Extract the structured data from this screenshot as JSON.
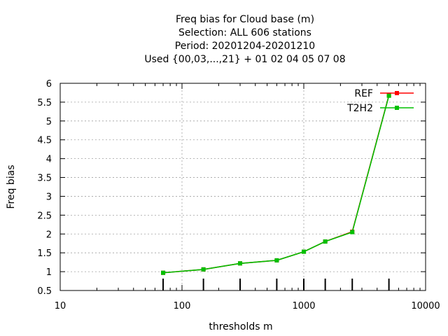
{
  "chart_data": {
    "type": "line",
    "title_lines": [
      "Freq bias  for Cloud base (m)",
      "Selection: ALL    606 stations",
      "Period: 20201204-20201210",
      "Used {00,03,...,21} + 01 02 04 05 07 08"
    ],
    "xlabel": "thresholds m",
    "ylabel": "Freq bias",
    "x_scale": "log",
    "xlim": [
      10,
      10000
    ],
    "ylim": [
      0.5,
      6
    ],
    "x_ticks": [
      10,
      100,
      1000,
      10000
    ],
    "x_tick_labels": [
      "10",
      "100",
      "1000",
      "10000"
    ],
    "y_ticks": [
      0.5,
      1,
      1.5,
      2,
      2.5,
      3,
      3.5,
      4,
      4.5,
      5,
      5.5,
      6
    ],
    "y_tick_labels": [
      "0.5",
      "1",
      "1.5",
      "2",
      "2.5",
      "3",
      "3.5",
      "4",
      "4.5",
      "5",
      "5.5",
      "6"
    ],
    "grid": true,
    "legend_position": "top-right",
    "x": [
      70,
      150,
      300,
      600,
      1000,
      1500,
      2500,
      5000
    ],
    "series": [
      {
        "name": "REF",
        "color": "#ff0000",
        "values": [
          0.97,
          1.06,
          1.22,
          1.3,
          1.53,
          1.8,
          2.06,
          5.68
        ]
      },
      {
        "name": "T2H2",
        "color": "#00c000",
        "values": [
          0.97,
          1.06,
          1.22,
          1.3,
          1.53,
          1.8,
          2.05,
          5.67
        ]
      }
    ],
    "count_bar_x": [
      70,
      150,
      300,
      600,
      1000,
      1500,
      2500,
      5000
    ]
  }
}
